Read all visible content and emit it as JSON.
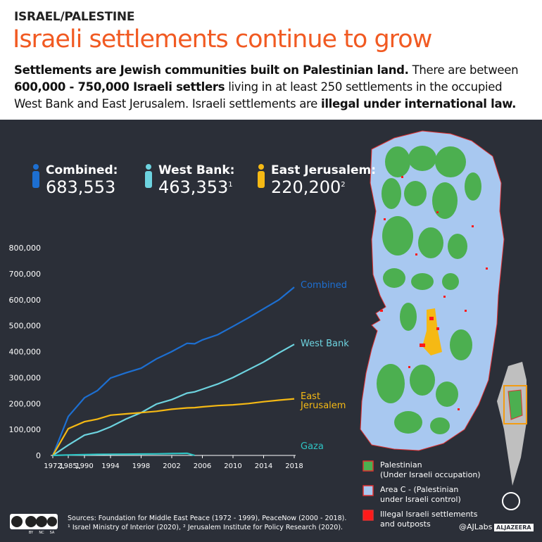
{
  "header": {
    "kicker": "ISRAEL/PALESTINE",
    "title": "Israeli settlements continue to grow",
    "description": [
      {
        "text": "Settlements are Jewish communities built on Palestinian land.",
        "bold": true
      },
      {
        "text": " There are between ",
        "bold": false
      },
      {
        "text": "600,000 - 750,000 Israeli settlers",
        "bold": true
      },
      {
        "text": " living in at least 250 settlements in the occupied West Bank and East Jerusalem. Israeli settlements are ",
        "bold": false
      },
      {
        "text": "illegal under international law.",
        "bold": true
      }
    ]
  },
  "stats": [
    {
      "label": "Combined:",
      "value": "683,553",
      "note": null,
      "color": "#1d6fd1"
    },
    {
      "label": "West Bank:",
      "value": "463,353",
      "note": "1",
      "color": "#6dd3df"
    },
    {
      "label": "East Jerusalem:",
      "value": "220,200",
      "note": "2",
      "color": "#f5b914"
    }
  ],
  "chart_data": {
    "type": "line",
    "x": [
      1972,
      1985,
      1990,
      1992,
      1994,
      1996,
      1998,
      2000,
      2002,
      2004,
      2005,
      2006,
      2008,
      2010,
      2012,
      2014,
      2016,
      2018
    ],
    "series": [
      {
        "name": "Combined",
        "color": "#1d6fd1",
        "values": [
          0,
          150000,
          222000,
          250000,
          298000,
          318000,
          336000,
          372000,
          400000,
          432000,
          430000,
          445000,
          465000,
          497000,
          530000,
          565000,
          600000,
          648000
        ]
      },
      {
        "name": "West Bank",
        "color": "#6dd3df",
        "values": [
          0,
          40000,
          78000,
          90000,
          110000,
          140000,
          165000,
          198000,
          215000,
          240000,
          245000,
          255000,
          275000,
          300000,
          330000,
          360000,
          395000,
          428000
        ]
      },
      {
        "name": "East Jerusalem",
        "color": "#f5b914",
        "values": [
          0,
          103000,
          130000,
          140000,
          155000,
          160000,
          165000,
          170000,
          178000,
          183000,
          184000,
          187000,
          192000,
          195000,
          200000,
          207000,
          213000,
          218000
        ]
      },
      {
        "name": "Gaza",
        "color": "#2ec4c4",
        "values": [
          0,
          2000,
          3000,
          4000,
          4500,
          5000,
          5500,
          6000,
          7000,
          8000,
          0,
          null,
          null,
          null,
          null,
          null,
          null,
          null
        ]
      }
    ],
    "ylim": [
      0,
      800000
    ],
    "yticks": [
      0,
      {
        "value": 100000,
        "label": "100,000"
      },
      {
        "value": 200000,
        "label": "200,000"
      },
      {
        "value": 300000,
        "label": "300,000"
      },
      {
        "value": 400000,
        "label": "400,000"
      },
      {
        "value": 500000,
        "label": "500,000"
      },
      {
        "value": 600000,
        "label": "600,000"
      },
      {
        "value": 700000,
        "label": "700,000"
      },
      {
        "value": 800000,
        "label": "800,000"
      }
    ],
    "xlim": [
      1972,
      2018
    ],
    "xticks": [
      1972,
      1985,
      1990,
      1994,
      1998,
      2002,
      2006,
      2010,
      2014,
      2018
    ],
    "grid": false
  },
  "map_legend": [
    {
      "lines": [
        "Palestinian",
        "(Under Israeli occupation)"
      ],
      "color": "#4caf50"
    },
    {
      "lines": [
        "Area C - (Palestinian",
        "under Israeli control)"
      ],
      "color": "#a8c8f0"
    },
    {
      "lines": [
        "Illegal Israeli settlements",
        "and outposts"
      ],
      "color": "#ff1a1a"
    }
  ],
  "footer": {
    "license": [
      "BY",
      "NC",
      "SA"
    ],
    "sources": [
      "Sources: Foundation for Middle East Peace (1972 - 1999), PeaceNow (2000 - 2018).",
      "¹ Israel Ministry of Interior (2020), ² Jerusalem Institute for Policy Research (2020)."
    ],
    "handle": "@AJLabs",
    "brand": "ALJAZEERA"
  }
}
